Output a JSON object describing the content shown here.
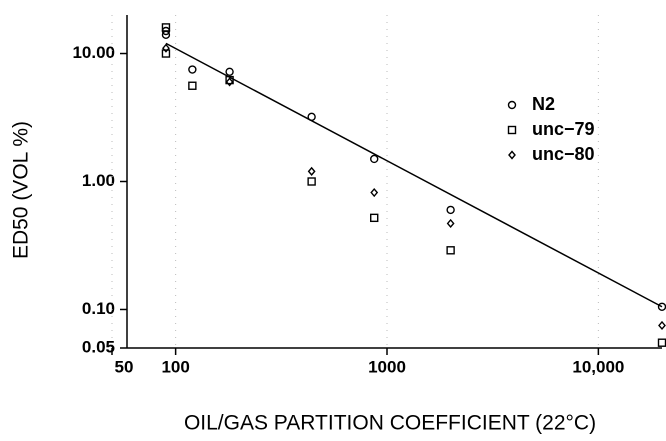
{
  "chart_data": {
    "type": "scatter",
    "xlabel": "OIL/GAS PARTITION COEFFICIENT (22°C)",
    "ylabel": "ED50 (VOL %)",
    "xscale": "log",
    "yscale": "log",
    "xlim": [
      50,
      20000
    ],
    "ylim": [
      0.05,
      20
    ],
    "xticks": [
      50,
      100,
      1000,
      {
        "value": 10000,
        "label": "10,000"
      }
    ],
    "yticks": [
      {
        "value": 10,
        "label": "10.00"
      },
      {
        "value": 1,
        "label": "1.00"
      },
      {
        "value": 0.1,
        "label": "0.10"
      },
      {
        "value": 0.05,
        "label": "0.05"
      }
    ],
    "legend": "right",
    "series": [
      {
        "name": "N2",
        "marker": "circle",
        "color": "#000000",
        "x": [
          90,
          90,
          120,
          180,
          440,
          870,
          2000,
          20000
        ],
        "values": [
          14,
          15,
          7.5,
          7.2,
          3.2,
          1.5,
          0.6,
          0.105
        ]
      },
      {
        "name": "unc−79",
        "marker": "square",
        "color": "#000000",
        "x": [
          90,
          90,
          120,
          180,
          440,
          870,
          2000,
          20000
        ],
        "values": [
          16,
          10,
          5.6,
          6.2,
          1.0,
          0.52,
          0.29,
          0.055
        ]
      },
      {
        "name": "unc−80",
        "marker": "diamond",
        "color": "#000000",
        "x": [
          90,
          180,
          440,
          870,
          2000,
          20000
        ],
        "values": [
          11,
          6.0,
          1.2,
          0.82,
          0.47,
          0.075
        ]
      }
    ],
    "fit_line": {
      "x": [
        90,
        20000
      ],
      "values": [
        12,
        0.105
      ]
    }
  }
}
